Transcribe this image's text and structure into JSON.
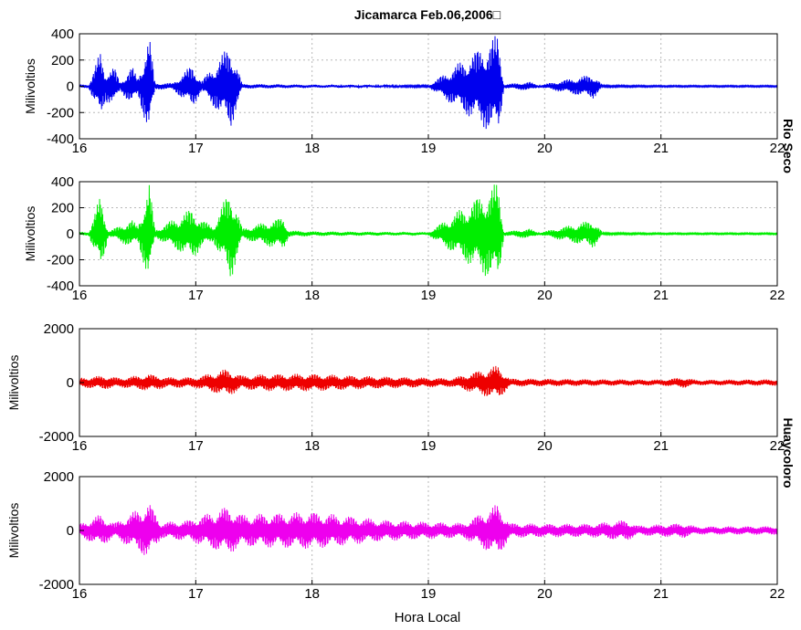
{
  "figure": {
    "title": "Jicamarca Feb.06,2006□",
    "xlabel": "Hora Local",
    "station_labels": [
      "Rio Seco",
      "Huaycoloro"
    ]
  },
  "chart_data": [
    {
      "type": "line",
      "series": [
        {
          "values_envelope": [
            [
              16.0,
              14
            ],
            [
              16.08,
              14
            ],
            [
              16.18,
              270
            ],
            [
              16.22,
              120
            ],
            [
              16.3,
              150
            ],
            [
              16.35,
              30
            ],
            [
              16.45,
              160
            ],
            [
              16.5,
              60
            ],
            [
              16.6,
              400
            ],
            [
              16.65,
              25
            ],
            [
              16.8,
              25
            ],
            [
              16.97,
              170
            ],
            [
              17.05,
              40
            ],
            [
              17.3,
              330
            ],
            [
              17.4,
              18
            ],
            [
              18.0,
              12
            ],
            [
              19.0,
              8
            ],
            [
              19.6,
              400
            ],
            [
              19.65,
              15
            ],
            [
              19.87,
              35
            ],
            [
              19.95,
              8
            ],
            [
              20.42,
              95
            ],
            [
              20.5,
              8
            ],
            [
              21.0,
              6
            ],
            [
              22.0,
              6
            ]
          ]
        }
      ],
      "color": "#0000ee",
      "xlim": [
        16,
        22
      ],
      "ylim": [
        -400,
        400
      ],
      "yticks": [
        400,
        200,
        0,
        -200,
        -400
      ],
      "xticks": [
        16,
        17,
        18,
        19,
        20,
        21,
        22
      ],
      "ylabel": "Milivoltios",
      "grid": true
    },
    {
      "type": "line",
      "series": [
        {
          "values_envelope": [
            [
              16.0,
              14
            ],
            [
              16.08,
              14
            ],
            [
              16.18,
              300
            ],
            [
              16.25,
              20
            ],
            [
              16.45,
              110
            ],
            [
              16.5,
              60
            ],
            [
              16.6,
              400
            ],
            [
              16.65,
              30
            ],
            [
              16.97,
              200
            ],
            [
              17.05,
              110
            ],
            [
              17.15,
              60
            ],
            [
              17.3,
              370
            ],
            [
              17.4,
              40
            ],
            [
              17.75,
              130
            ],
            [
              17.8,
              25
            ],
            [
              18.0,
              18
            ],
            [
              19.0,
              12
            ],
            [
              19.6,
              400
            ],
            [
              19.65,
              15
            ],
            [
              19.87,
              40
            ],
            [
              19.95,
              8
            ],
            [
              20.42,
              110
            ],
            [
              20.5,
              8
            ],
            [
              21.0,
              6
            ],
            [
              22.0,
              6
            ]
          ]
        }
      ],
      "color": "#00ee00",
      "xlim": [
        16,
        22
      ],
      "ylim": [
        -400,
        400
      ],
      "yticks": [
        400,
        200,
        0,
        -200,
        -400
      ],
      "xticks": [
        16,
        17,
        18,
        19,
        20,
        21,
        22
      ],
      "ylabel": "Milivoltios",
      "grid": true
    },
    {
      "type": "line",
      "series": [
        {
          "values_envelope": [
            [
              16.0,
              180
            ],
            [
              16.2,
              260
            ],
            [
              16.35,
              180
            ],
            [
              16.6,
              320
            ],
            [
              16.75,
              200
            ],
            [
              17.0,
              200
            ],
            [
              17.27,
              520
            ],
            [
              17.4,
              260
            ],
            [
              17.6,
              320
            ],
            [
              18.0,
              330
            ],
            [
              18.4,
              250
            ],
            [
              18.8,
              200
            ],
            [
              19.2,
              160
            ],
            [
              19.6,
              650
            ],
            [
              19.7,
              150
            ],
            [
              20.0,
              140
            ],
            [
              20.5,
              120
            ],
            [
              21.0,
              110
            ],
            [
              21.2,
              200
            ],
            [
              21.3,
              100
            ],
            [
              22.0,
              120
            ]
          ]
        }
      ],
      "color": "#ee0000",
      "xlim": [
        16,
        22
      ],
      "ylim": [
        -2000,
        2000
      ],
      "yticks": [
        2000,
        0,
        -2000
      ],
      "xticks": [
        16,
        17,
        18,
        19,
        20,
        21,
        22
      ],
      "ylabel": "Milivoltios",
      "grid": true
    },
    {
      "type": "line",
      "series": [
        {
          "values_envelope": [
            [
              16.0,
              250
            ],
            [
              16.18,
              600
            ],
            [
              16.3,
              280
            ],
            [
              16.6,
              1050
            ],
            [
              16.7,
              300
            ],
            [
              16.95,
              400
            ],
            [
              17.27,
              900
            ],
            [
              17.4,
              600
            ],
            [
              17.7,
              650
            ],
            [
              18.0,
              700
            ],
            [
              18.3,
              550
            ],
            [
              18.6,
              400
            ],
            [
              19.0,
              320
            ],
            [
              19.3,
              280
            ],
            [
              19.6,
              1000
            ],
            [
              19.7,
              280
            ],
            [
              20.0,
              250
            ],
            [
              20.4,
              250
            ],
            [
              20.7,
              400
            ],
            [
              20.8,
              180
            ],
            [
              21.2,
              280
            ],
            [
              21.3,
              150
            ],
            [
              22.0,
              160
            ]
          ]
        }
      ],
      "color": "#ee00ee",
      "xlim": [
        16,
        22
      ],
      "ylim": [
        -2000,
        2000
      ],
      "yticks": [
        2000,
        0,
        -2000
      ],
      "xticks": [
        16,
        17,
        18,
        19,
        20,
        21,
        22
      ],
      "ylabel": "Milivoltios",
      "grid": true
    }
  ]
}
